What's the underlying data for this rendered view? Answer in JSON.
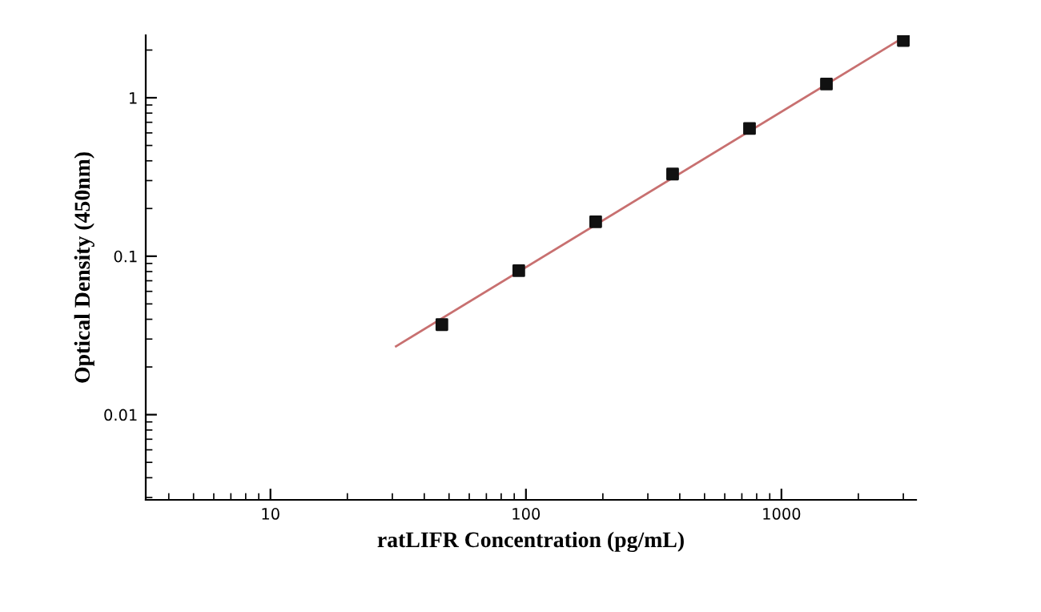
{
  "chart_data": {
    "type": "scatter",
    "xlabel": "ratLIFR Concentration (pg/mL)",
    "ylabel": "Optical Density (450nm)",
    "log": "xy",
    "xlim": [
      3.25,
      3365
    ],
    "ylim": [
      0.0029,
      2.48
    ],
    "xticks": [
      10,
      100,
      1000
    ],
    "yticks": [
      0.01,
      0.1,
      1
    ],
    "grid": false,
    "legend": false,
    "marker": "square",
    "series": [
      {
        "type": "line",
        "color": "#c87070",
        "x": [
          31,
          3000
        ],
        "values": [
          0.027,
          2.4
        ],
        "marker": "none",
        "line_style": "solid"
      },
      {
        "color": "#111111",
        "x": [
          46.88,
          93.75,
          187.5,
          375,
          750,
          1500,
          3000
        ],
        "values": [
          0.037,
          0.081,
          0.165,
          0.33,
          0.64,
          1.22,
          2.3
        ]
      }
    ]
  }
}
